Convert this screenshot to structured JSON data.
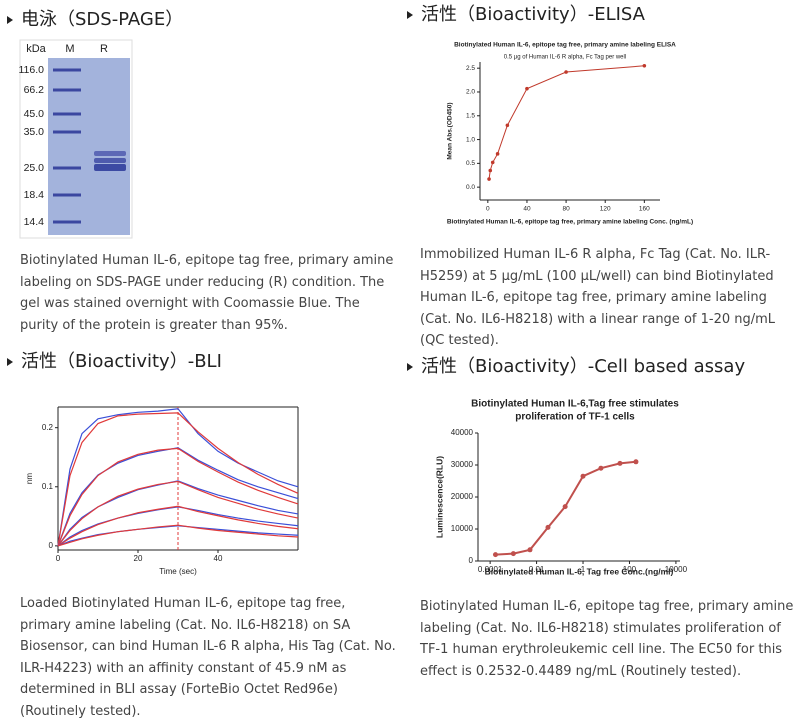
{
  "panels": [
    {
      "heading": "电泳（SDS-PAGE）",
      "gel": {
        "columns": [
          "kDa",
          "M",
          "R"
        ],
        "ladder": [
          "116.0",
          "66.2",
          "45.0",
          "35.0",
          "25.0",
          "18.4",
          "14.4"
        ]
      },
      "caption": "Biotinylated Human IL-6, epitope tag free, primary amine labeling on SDS-PAGE under reducing (R) condition. The gel was stained overnight with Coomassie Blue. The purity of the protein is greater than 95%."
    },
    {
      "heading": "活性（Bioactivity）-ELISA",
      "chart": {
        "type": "line",
        "title": "Biotinylated Human IL-6, epitope tag free, primary amine labeling ELISA",
        "subtitle": "0.5 µg of Human IL-6 R alpha, Fc Tag per well",
        "y_label": "Mean Abs.(OD450)",
        "x_label": "Biotinylated Human IL-6, epitope tag free, primary amine labeling Conc. (ng/mL)",
        "x": [
          1.25,
          2.5,
          5,
          10,
          20,
          40,
          80,
          160
        ],
        "series": [
          {
            "color": "#c0392b",
            "values": [
              0.17,
              0.35,
              0.52,
              0.7,
              1.3,
              2.07,
              2.42,
              2.55
            ]
          }
        ],
        "markers": true,
        "xlim": [
          -8,
          176
        ],
        "xticks": [
          0,
          40,
          80,
          120,
          160
        ],
        "ylim": [
          -0.27,
          2.63
        ],
        "yticks": [
          {
            "value": 0,
            "label": "0.0"
          },
          0.5,
          {
            "value": 1,
            "label": "1.0"
          },
          1.5,
          {
            "value": 2,
            "label": "2.0"
          },
          2.5
        ]
      },
      "caption": "Immobilized Human IL-6 R alpha, Fc Tag (Cat. No. ILR-H5259) at 5 μg/mL (100 μL/well) can bind Biotinylated Human IL-6, epitope tag free, primary amine labeling (Cat. No. IL6-H8218) with a linear range of 1-20 ng/mL (QC tested)."
    },
    {
      "heading": "活性（Bioactivity）-BLI",
      "chart": {
        "type": "line",
        "y_label": "nm",
        "x_label": "Time (sec)",
        "x": [
          0,
          3,
          6,
          10,
          15,
          20,
          25,
          30,
          35,
          40,
          45,
          50,
          55,
          60
        ],
        "series": [
          {
            "color": "#3a4fd8",
            "values": [
              0,
              0.13,
              0.19,
              0.215,
              0.222,
              0.226,
              0.228,
              0.232,
              0.19,
              0.16,
              0.14,
              0.125,
              0.11,
              0.1
            ]
          },
          {
            "color": "#e03a3a",
            "values": [
              0,
              0.119,
              0.175,
              0.207,
              0.22,
              0.223,
              0.224,
              0.225,
              0.193,
              0.165,
              0.141,
              0.121,
              0.104,
              0.089
            ]
          },
          {
            "color": "#3a4fd8",
            "values": [
              0,
              0.055,
              0.09,
              0.12,
              0.14,
              0.153,
              0.16,
              0.166,
              0.145,
              0.128,
              0.112,
              0.1,
              0.09,
              0.08
            ]
          },
          {
            "color": "#e03a3a",
            "values": [
              0,
              0.051,
              0.087,
              0.119,
              0.142,
              0.155,
              0.162,
              0.165,
              0.143,
              0.125,
              0.108,
              0.094,
              0.082,
              0.071
            ]
          },
          {
            "color": "#3a4fd8",
            "values": [
              0,
              0.028,
              0.048,
              0.066,
              0.082,
              0.095,
              0.103,
              0.11,
              0.097,
              0.086,
              0.077,
              0.068,
              0.06,
              0.054
            ]
          },
          {
            "color": "#e03a3a",
            "values": [
              0,
              0.026,
              0.046,
              0.066,
              0.084,
              0.096,
              0.104,
              0.109,
              0.095,
              0.082,
              0.072,
              0.062,
              0.054,
              0.047
            ]
          },
          {
            "color": "#3a4fd8",
            "values": [
              0,
              0.015,
              0.026,
              0.037,
              0.047,
              0.055,
              0.061,
              0.066,
              0.06,
              0.053,
              0.047,
              0.042,
              0.038,
              0.034
            ]
          },
          {
            "color": "#e03a3a",
            "values": [
              0,
              0.013,
              0.024,
              0.036,
              0.047,
              0.056,
              0.062,
              0.067,
              0.058,
              0.051,
              0.044,
              0.038,
              0.033,
              0.029
            ]
          },
          {
            "color": "#3a4fd8",
            "values": [
              0,
              0.008,
              0.013,
              0.019,
              0.024,
              0.028,
              0.031,
              0.034,
              0.031,
              0.028,
              0.025,
              0.022,
              0.02,
              0.018
            ]
          },
          {
            "color": "#e03a3a",
            "values": [
              0,
              0.006,
              0.012,
              0.018,
              0.024,
              0.028,
              0.032,
              0.035,
              0.03,
              0.026,
              0.023,
              0.02,
              0.017,
              0.015
            ]
          }
        ],
        "markers": false,
        "vline": 30,
        "vline_color": "#e03a3a",
        "xlim": [
          0,
          60
        ],
        "xticks": [
          0,
          20,
          40
        ],
        "ylim": [
          -0.007,
          0.235
        ],
        "yticks": [
          0,
          0.1,
          0.2
        ]
      },
      "caption": "Loaded Biotinylated Human IL-6, epitope tag free, primary amine labeling (Cat. No. IL6-H8218) on SA Biosensor, can bind Human IL-6 R alpha, His Tag (Cat. No. ILR-H4223) with an affinity constant of 45.9 nM as determined in BLI assay (ForteBio Octet Red96e) (Routinely tested)."
    },
    {
      "heading": "活性（Bioactivity）-Cell based assay",
      "chart": {
        "type": "line",
        "title": [
          "Biotinylated Human IL-6,Tag free stimulates",
          "proliferation of TF-1 cells"
        ],
        "y_label": "Luminescence(RLU)",
        "x_label": "Biotinylated Human IL-6, Tag free Conc.(ng/ml)",
        "x": [
          0.00017,
          0.001,
          0.0052,
          0.031,
          0.17,
          1,
          5.9,
          39,
          190
        ],
        "series": [
          {
            "color": "#c0504d",
            "values": [
              2000,
              2300,
              3500,
              10500,
              17000,
              26500,
              29000,
              30500,
              31000
            ]
          }
        ],
        "markers": true,
        "log_x": true,
        "xlim": [
          3e-05,
          15000
        ],
        "xticks": [
          0.0001,
          0.01,
          1,
          100,
          10000
        ],
        "ylim": [
          0,
          40000
        ],
        "yticks": [
          0,
          10000,
          20000,
          30000,
          40000
        ]
      },
      "caption": "Biotinylated Human IL-6, epitope tag free, primary amine labeling (Cat. No. IL6-H8218) stimulates proliferation of TF-1 human erythroleukemic cell line. The EC50 for this effect is 0.2532-0.4489 ng/mL (Routinely tested)."
    }
  ]
}
